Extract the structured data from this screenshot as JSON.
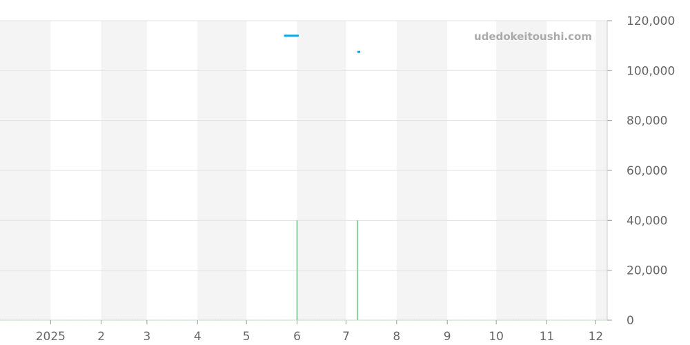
{
  "watermark": "udedokeitoushi.com",
  "chart_data": {
    "type": "line",
    "x_range": [
      "2024-12-01",
      "2025-12-08"
    ],
    "ylim": [
      0,
      120000
    ],
    "y_ticks": [
      "0",
      "20,000",
      "40,000",
      "60,000",
      "80,000",
      "100,000",
      "120,000"
    ],
    "y_tick_values": [
      0,
      20000,
      40000,
      60000,
      80000,
      100000,
      120000
    ],
    "x_ticks": [
      {
        "label": "2025",
        "date": "2025-01-01"
      },
      {
        "label": "2",
        "date": "2025-02-01"
      },
      {
        "label": "3",
        "date": "2025-03-01"
      },
      {
        "label": "4",
        "date": "2025-04-01"
      },
      {
        "label": "5",
        "date": "2025-05-01"
      },
      {
        "label": "6",
        "date": "2025-06-01"
      },
      {
        "label": "7",
        "date": "2025-07-01"
      },
      {
        "label": "8",
        "date": "2025-08-01"
      },
      {
        "label": "9",
        "date": "2025-09-01"
      },
      {
        "label": "10",
        "date": "2025-10-01"
      },
      {
        "label": "11",
        "date": "2025-11-01"
      },
      {
        "label": "12",
        "date": "2025-12-01"
      }
    ],
    "grid": true,
    "alternating_month_bands": true,
    "series": [
      {
        "type": "line",
        "color": "#0ea5e9",
        "points": [
          [
            "2025-05-24",
            114000
          ],
          [
            "2025-06-02",
            114000
          ]
        ]
      },
      {
        "type": "line",
        "color": "#0ea5e9",
        "points": [
          [
            "2025-07-08",
            107500
          ],
          [
            "2025-07-09",
            107500
          ]
        ]
      },
      {
        "type": "bar",
        "color": "#8fd19e",
        "points": [
          [
            "2025-06-01",
            40000
          ],
          [
            "2025-07-08",
            40000
          ]
        ]
      }
    ]
  }
}
